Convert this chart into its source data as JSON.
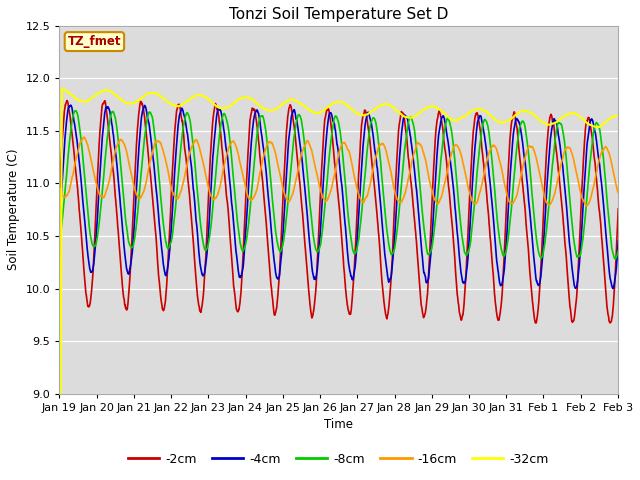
{
  "title": "Tonzi Soil Temperature Set D",
  "ylabel": "Soil Temperature (C)",
  "xlabel": "Time",
  "ylim": [
    9.0,
    12.5
  ],
  "yticks": [
    9.0,
    9.5,
    10.0,
    10.5,
    11.0,
    11.5,
    12.0,
    12.5
  ],
  "bg_color": "#dcdcdc",
  "fig_color": "#ffffff",
  "label_box": "TZ_fmet",
  "series": [
    {
      "label": "-2cm",
      "color": "#cc0000",
      "lw": 1.2
    },
    {
      "label": "-4cm",
      "color": "#0000cc",
      "lw": 1.2
    },
    {
      "label": "-8cm",
      "color": "#00cc00",
      "lw": 1.2
    },
    {
      "label": "-16cm",
      "color": "#ff9900",
      "lw": 1.2
    },
    {
      "label": "-32cm",
      "color": "#ffff00",
      "lw": 1.5
    }
  ],
  "xtick_labels": [
    "Jan 19",
    "Jan 20",
    "Jan 21",
    "Jan 22",
    "Jan 23",
    "Jan 24",
    "Jan 25",
    "Jan 26",
    "Jan 27",
    "Jan 28",
    "Jan 29",
    "Jan 30",
    "Jan 31",
    "Feb 1",
    "Feb 2",
    "Feb 3"
  ],
  "n_days": 16
}
